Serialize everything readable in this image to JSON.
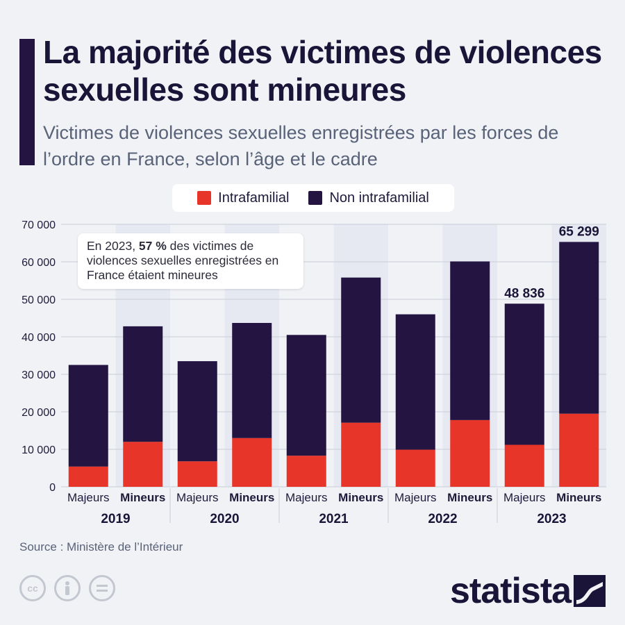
{
  "header": {
    "title": "La majorité des victimes de violences sexuelles sont mineures",
    "subtitle": "Victimes de violences sexuelles enregistrées par les forces de l’ordre en France, selon l’âge et le cadre"
  },
  "legend": {
    "intra": "Intrafamilial",
    "non_intra": "Non intrafamilial"
  },
  "annotation": {
    "pre": "En 2023, ",
    "bold": "57 %",
    "post": " des victimes de violences sexuelles enregistrées en France étaient mineures"
  },
  "footer": {
    "source": "Source : Ministère de l’Intérieur",
    "brand": "statista"
  },
  "icons": [
    "cc-icon",
    "person-icon",
    "equals-icon",
    "statista-logo-icon"
  ],
  "colors": {
    "intra": "#e8352a",
    "non_intra": "#231441",
    "background": "#f1f2f6",
    "band": "#e6e9f2"
  },
  "chart_data": {
    "type": "bar",
    "stacked": true,
    "years": [
      "2019",
      "2020",
      "2021",
      "2022",
      "2023"
    ],
    "sub_categories": [
      "Majeurs",
      "Mineurs"
    ],
    "categories": [
      {
        "year": "2019",
        "group": "Majeurs"
      },
      {
        "year": "2019",
        "group": "Mineurs"
      },
      {
        "year": "2020",
        "group": "Majeurs"
      },
      {
        "year": "2020",
        "group": "Mineurs"
      },
      {
        "year": "2021",
        "group": "Majeurs"
      },
      {
        "year": "2021",
        "group": "Mineurs"
      },
      {
        "year": "2022",
        "group": "Majeurs"
      },
      {
        "year": "2022",
        "group": "Mineurs"
      },
      {
        "year": "2023",
        "group": "Majeurs"
      },
      {
        "year": "2023",
        "group": "Mineurs"
      }
    ],
    "series": [
      {
        "name": "Intrafamilial",
        "values": [
          5400,
          12000,
          6800,
          13000,
          8300,
          17100,
          9900,
          17800,
          11200,
          19500
        ]
      },
      {
        "name": "Non intrafamilial",
        "values": [
          27100,
          30800,
          26700,
          30700,
          32200,
          38700,
          36100,
          42300,
          37636,
          45799
        ]
      }
    ],
    "data_labels": {
      "8": "48 836",
      "9": "65 299"
    },
    "ylim": [
      0,
      70000
    ],
    "yticks": [
      "0",
      "10 000",
      "20 000",
      "30 000",
      "40 000",
      "50 000",
      "60 000",
      "70 000"
    ],
    "grid": true,
    "legend_position": "top-center"
  }
}
